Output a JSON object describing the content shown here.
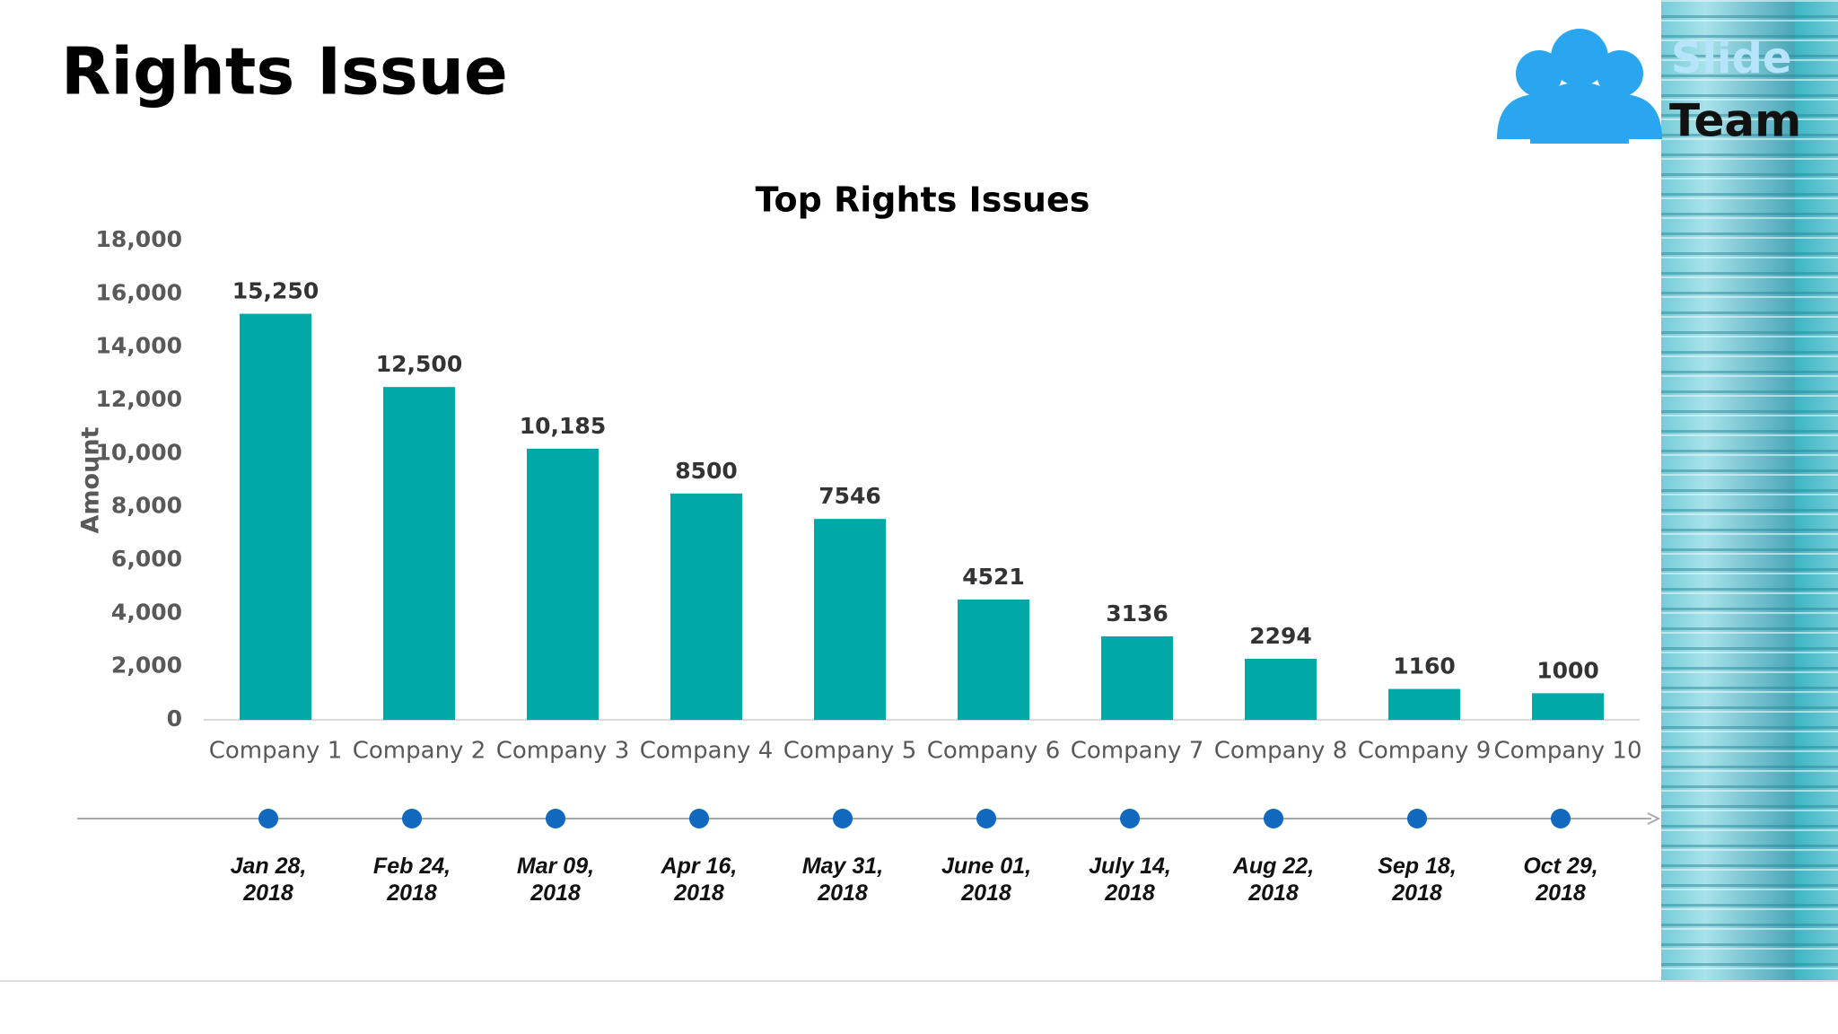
{
  "title": "Rights Issue",
  "logo": {
    "line1": "Slide",
    "line2": "Team"
  },
  "chart_data": {
    "type": "bar",
    "title": "Top Rights Issues",
    "y_label": "Amount",
    "categories": [
      "Company 1",
      "Company 2",
      "Company 3",
      "Company 4",
      "Company 5",
      "Company 6",
      "Company 7",
      "Company 8",
      "Company 9",
      "Company 10"
    ],
    "values": [
      15250,
      12500,
      10185,
      8500,
      7546,
      4521,
      3136,
      2294,
      1160,
      1000
    ],
    "value_labels": [
      "15,250",
      "12,500",
      "10,185",
      "8500",
      "7546",
      "4521",
      "3136",
      "2294",
      "1160",
      "1000"
    ],
    "color": "#00a9a8",
    "ylim": [
      0,
      18000
    ],
    "yticks": [
      0,
      {
        "value": 2000,
        "label": "2,000"
      },
      {
        "value": 4000,
        "label": "4,000"
      },
      {
        "value": 6000,
        "label": "6,000"
      },
      {
        "value": 8000,
        "label": "8,000"
      },
      {
        "value": 10000,
        "label": "10,000"
      },
      {
        "value": 12000,
        "label": "12,000"
      },
      {
        "value": 14000,
        "label": "14,000"
      },
      {
        "value": 16000,
        "label": "16,000"
      },
      {
        "value": 18000,
        "label": "18,000"
      }
    ],
    "grid": false
  },
  "timeline": {
    "dates": [
      "Jan 28, 2018",
      "Feb 24, 2018",
      "Mar 09, 2018",
      "Apr 16, 2018",
      "May 31, 2018",
      "June 01, 2018",
      "July 14, 2018",
      "Aug 22, 2018",
      "Sep 18, 2018",
      "Oct 29, 2018"
    ]
  }
}
